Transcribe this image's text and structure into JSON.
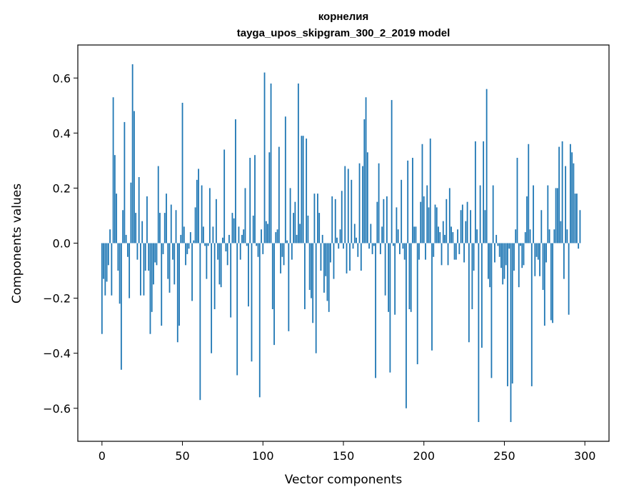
{
  "chart_data": {
    "type": "bar",
    "title": "корнелия",
    "subtitle": "tayga_upos_skipgram_300_2_2019 model",
    "xlabel": "Vector components",
    "ylabel": "Components values",
    "xlim": [
      -15,
      315
    ],
    "ylim": [
      -0.72,
      0.72
    ],
    "xticks": [
      0,
      50,
      100,
      150,
      200,
      250,
      300
    ],
    "yticks": [
      -0.6,
      -0.4,
      -0.2,
      0.0,
      0.2,
      0.4,
      0.6
    ],
    "ytick_labels": [
      "−0.6",
      "−0.4",
      "−0.2",
      "0.0",
      "0.2",
      "0.4",
      "0.6"
    ],
    "color": "#1f77b4",
    "grid": false,
    "values": [
      -0.33,
      -0.13,
      -0.19,
      -0.14,
      -0.08,
      0.05,
      -0.19,
      0.53,
      0.32,
      0.18,
      -0.1,
      -0.22,
      -0.46,
      0.12,
      0.44,
      0.03,
      -0.05,
      -0.2,
      0.22,
      0.65,
      0.48,
      0.11,
      -0.06,
      0.24,
      -0.19,
      0.08,
      -0.19,
      -0.1,
      0.17,
      -0.1,
      -0.33,
      -0.25,
      -0.15,
      -0.07,
      -0.08,
      0.28,
      0.11,
      -0.3,
      -0.04,
      0.11,
      0.18,
      -0.13,
      -0.18,
      0.14,
      -0.06,
      -0.15,
      0.12,
      -0.36,
      -0.3,
      0.03,
      0.51,
      0.06,
      -0.08,
      -0.04,
      -0.02,
      0.04,
      -0.21,
      0.01,
      0.13,
      0.23,
      0.27,
      -0.57,
      0.21,
      0.06,
      -0.01,
      -0.13,
      -0.01,
      0.2,
      -0.4,
      0.06,
      -0.24,
      0.16,
      -0.06,
      -0.15,
      -0.16,
      0.02,
      0.34,
      -0.03,
      -0.08,
      0.03,
      -0.27,
      0.11,
      0.09,
      0.45,
      -0.48,
      0.06,
      -0.06,
      0.03,
      0.05,
      0.2,
      -0.01,
      -0.23,
      0.31,
      -0.43,
      0.1,
      0.32,
      -0.01,
      -0.05,
      -0.56,
      0.05,
      -0.04,
      0.62,
      0.08,
      0.07,
      0.33,
      0.58,
      -0.24,
      -0.37,
      0.04,
      0.05,
      0.35,
      -0.11,
      -0.05,
      -0.08,
      0.46,
      0.01,
      -0.32,
      0.2,
      -0.06,
      0.11,
      0.15,
      0.03,
      0.58,
      0.07,
      0.39,
      0.39,
      -0.24,
      0.38,
      0.1,
      -0.17,
      -0.2,
      -0.29,
      0.18,
      -0.4,
      0.18,
      0.11,
      -0.1,
      0.03,
      -0.18,
      -0.12,
      -0.21,
      -0.25,
      -0.07,
      0.17,
      -0.13,
      0.16,
      0.02,
      -0.02,
      0.05,
      0.19,
      -0.02,
      0.28,
      -0.11,
      0.27,
      -0.1,
      0.23,
      -0.02,
      0.07,
      0.02,
      -0.05,
      0.29,
      -0.1,
      0.28,
      0.45,
      0.53,
      0.33,
      -0.02,
      0.07,
      -0.04,
      -0.01,
      -0.49,
      0.15,
      0.29,
      -0.04,
      0.06,
      0.16,
      -0.19,
      0.17,
      -0.25,
      -0.47,
      0.52,
      -0.01,
      -0.26,
      0.13,
      0.05,
      -0.04,
      0.23,
      -0.02,
      -0.06,
      -0.6,
      0.3,
      -0.24,
      -0.25,
      0.31,
      0.06,
      0.06,
      -0.44,
      -0.06,
      0.15,
      0.36,
      0.17,
      -0.06,
      0.21,
      0.13,
      0.38,
      -0.39,
      -0.05,
      0.14,
      0.13,
      0.06,
      0.04,
      -0.08,
      0.08,
      0.03,
      0.16,
      -0.08,
      0.2,
      0.06,
      0.04,
      -0.06,
      -0.06,
      0.05,
      -0.04,
      0.12,
      0.14,
      -0.07,
      0.08,
      0.15,
      -0.36,
      0.12,
      -0.24,
      -0.1,
      0.37,
      0.05,
      -0.65,
      0.21,
      -0.38,
      0.37,
      0.12,
      0.56,
      -0.13,
      -0.16,
      -0.49,
      0.21,
      -0.07,
      0.03,
      -0.01,
      -0.05,
      -0.09,
      -0.15,
      -0.13,
      -0.08,
      -0.52,
      -0.02,
      -0.65,
      -0.51,
      -0.1,
      0.05,
      0.31,
      -0.16,
      -0.01,
      -0.09,
      -0.08,
      0.04,
      0.17,
      0.36,
      0.05,
      -0.52,
      0.21,
      -0.12,
      -0.05,
      -0.06,
      -0.12,
      0.12,
      -0.17,
      -0.3,
      -0.07,
      0.21,
      0.05,
      -0.28,
      -0.29,
      0.05,
      0.2,
      0.2,
      0.35,
      0.08,
      0.37,
      -0.13,
      0.28,
      0.05,
      -0.26,
      0.36,
      0.33,
      0.29,
      0.18,
      0.18,
      -0.02,
      0.12
    ]
  }
}
